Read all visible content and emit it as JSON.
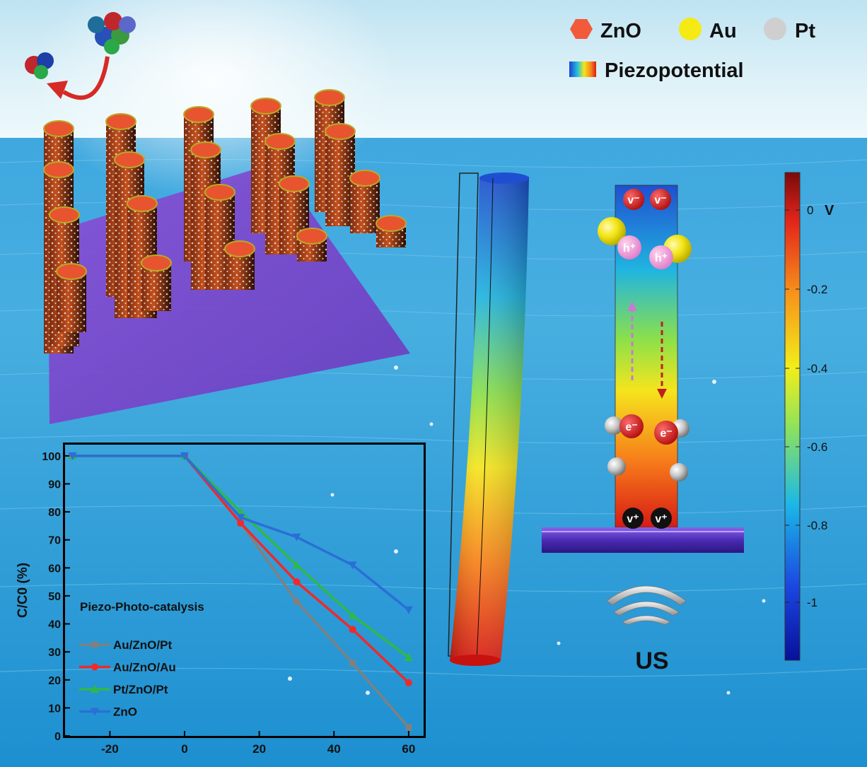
{
  "legend": {
    "zno": "ZnO",
    "au": "Au",
    "pt": "Pt",
    "piezopotential": "Piezopotential",
    "colors": {
      "zno": "#f15a3a",
      "au": "#f5ea14",
      "pt": "#d0d0d0"
    }
  },
  "colorbar": {
    "unit": "V",
    "ticks": [
      "0",
      "-0.2",
      "-0.4",
      "-0.6",
      "-0.8",
      "-1"
    ]
  },
  "nanorod": {
    "top_charges": [
      "v⁻",
      "v⁻"
    ],
    "holes": [
      "h⁺",
      "h⁺"
    ],
    "electrons": [
      "e⁻",
      "e⁻"
    ],
    "bottom_charges": [
      "v⁺",
      "v⁺"
    ]
  },
  "us_label": "US",
  "chart_data": {
    "type": "line",
    "annotation": "Piezo-Photo-catalysis",
    "ylabel": "C/C0 (%)",
    "xlabel": "",
    "xlim": [
      -32,
      64
    ],
    "ylim": [
      0,
      104
    ],
    "xticks": [
      -20,
      0,
      20,
      40,
      60
    ],
    "yticks": [
      0,
      10,
      20,
      30,
      40,
      50,
      60,
      70,
      80,
      90,
      100
    ],
    "series": [
      {
        "name": "Au/ZnO/Pt",
        "color": "#808080",
        "marker": "square",
        "x": [
          -30,
          0,
          15,
          30,
          45,
          60
        ],
        "y": [
          100,
          100,
          76,
          48,
          26,
          3
        ]
      },
      {
        "name": "Au/ZnO/Au",
        "color": "#ee2a2a",
        "marker": "circle",
        "x": [
          -30,
          0,
          15,
          30,
          45,
          60
        ],
        "y": [
          100,
          100,
          76,
          55,
          38,
          19
        ]
      },
      {
        "name": "Pt/ZnO/Pt",
        "color": "#2fb84a",
        "marker": "triangle",
        "x": [
          -30,
          0,
          15,
          30,
          45,
          60
        ],
        "y": [
          100,
          100,
          80,
          61,
          43,
          28
        ]
      },
      {
        "name": "ZnO",
        "color": "#2a6fd6",
        "marker": "triangle-down",
        "x": [
          -30,
          0,
          15,
          30,
          45,
          60
        ],
        "y": [
          100,
          100,
          78,
          71,
          61,
          45
        ]
      }
    ]
  }
}
